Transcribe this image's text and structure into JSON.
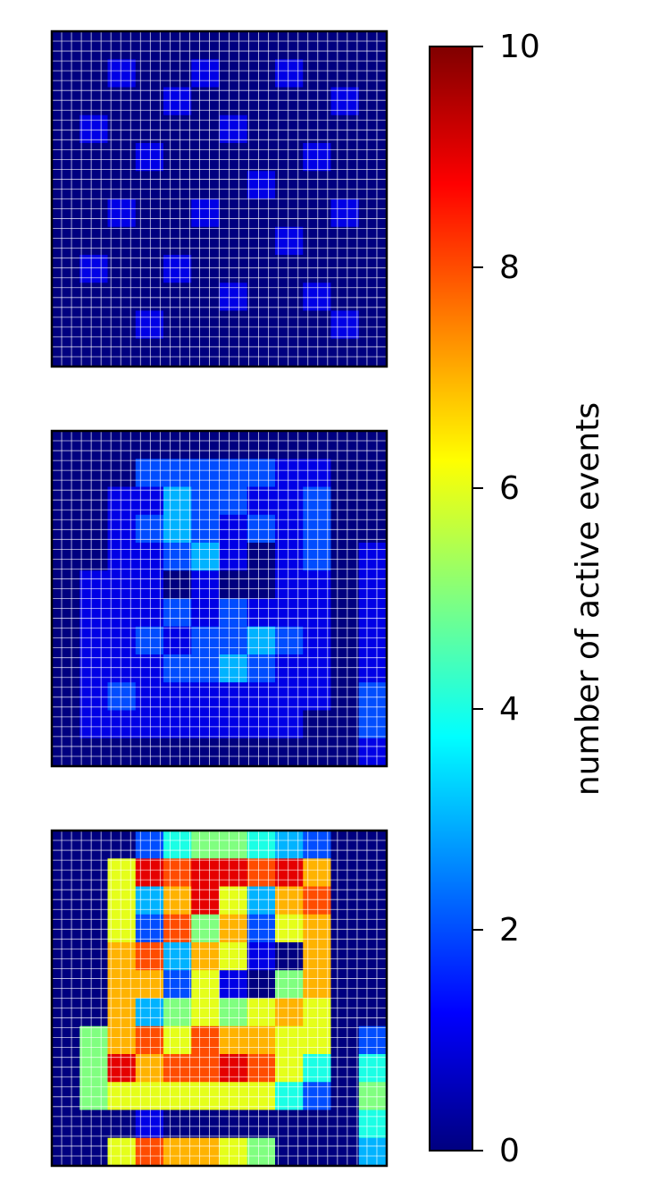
{
  "chart_data": {
    "type": "heatmap",
    "colormap": "jet",
    "clim": [
      0,
      10
    ],
    "cticks": [
      0,
      2,
      4,
      6,
      8,
      10
    ],
    "colorbar_label": "number of active events",
    "panels": [
      {
        "values": [
          [
            0,
            0,
            0,
            0,
            0,
            0,
            0,
            0,
            0,
            0,
            0,
            0
          ],
          [
            0,
            0,
            1,
            0,
            0,
            1,
            0,
            0,
            1,
            0,
            0,
            0
          ],
          [
            0,
            0,
            0,
            0,
            1,
            0,
            0,
            0,
            0,
            0,
            1,
            0
          ],
          [
            0,
            1,
            0,
            0,
            0,
            0,
            1,
            0,
            0,
            0,
            0,
            0
          ],
          [
            0,
            0,
            0,
            1,
            0,
            0,
            0,
            0,
            0,
            1,
            0,
            0
          ],
          [
            0,
            0,
            0,
            0,
            0,
            0,
            0,
            1,
            0,
            0,
            0,
            0
          ],
          [
            0,
            0,
            1,
            0,
            0,
            1,
            0,
            0,
            0,
            0,
            1,
            0
          ],
          [
            0,
            0,
            0,
            0,
            0,
            0,
            0,
            0,
            1,
            0,
            0,
            0
          ],
          [
            0,
            1,
            0,
            0,
            1,
            0,
            0,
            0,
            0,
            0,
            0,
            0
          ],
          [
            0,
            0,
            0,
            0,
            0,
            0,
            1,
            0,
            0,
            1,
            0,
            0
          ],
          [
            0,
            0,
            0,
            1,
            0,
            0,
            0,
            0,
            0,
            0,
            1,
            0
          ],
          [
            0,
            0,
            0,
            0,
            0,
            0,
            0,
            0,
            0,
            0,
            0,
            0
          ]
        ]
      },
      {
        "values": [
          [
            0,
            0,
            0,
            0,
            0,
            0,
            0,
            0,
            0,
            0,
            0,
            0
          ],
          [
            0,
            0,
            0,
            2,
            2,
            2,
            2,
            2,
            1,
            1,
            0,
            0
          ],
          [
            0,
            0,
            1,
            1,
            3,
            2,
            2,
            1,
            1,
            2,
            0,
            0
          ],
          [
            0,
            0,
            1,
            2,
            3,
            2,
            1,
            2,
            1,
            2,
            0,
            0
          ],
          [
            0,
            0,
            1,
            1,
            2,
            3,
            1,
            0,
            1,
            2,
            0,
            1
          ],
          [
            0,
            1,
            1,
            1,
            0,
            1,
            0,
            0,
            1,
            1,
            0,
            1
          ],
          [
            0,
            1,
            1,
            1,
            2,
            1,
            2,
            1,
            1,
            1,
            0,
            1
          ],
          [
            0,
            1,
            1,
            2,
            1,
            2,
            2,
            3,
            2,
            1,
            0,
            1
          ],
          [
            0,
            1,
            1,
            1,
            2,
            2,
            3,
            2,
            1,
            1,
            0,
            1
          ],
          [
            0,
            1,
            2,
            1,
            1,
            1,
            1,
            1,
            1,
            1,
            0,
            2
          ],
          [
            0,
            1,
            1,
            1,
            1,
            1,
            1,
            1,
            1,
            0,
            0,
            2
          ],
          [
            0,
            0,
            0,
            0,
            0,
            0,
            0,
            0,
            0,
            0,
            0,
            1
          ]
        ]
      },
      {
        "values": [
          [
            0,
            0,
            0,
            2,
            4,
            5,
            5,
            4,
            3,
            2,
            0,
            0
          ],
          [
            0,
            0,
            6,
            9,
            8,
            9,
            9,
            8,
            9,
            7,
            0,
            0
          ],
          [
            0,
            0,
            6,
            3,
            7,
            9,
            6,
            3,
            7,
            8,
            0,
            0
          ],
          [
            0,
            0,
            6,
            2,
            8,
            5,
            7,
            2,
            6,
            7,
            0,
            0
          ],
          [
            0,
            0,
            7,
            8,
            3,
            7,
            6,
            1,
            0,
            7,
            0,
            0
          ],
          [
            0,
            0,
            7,
            7,
            2,
            6,
            1,
            0,
            5,
            7,
            0,
            0
          ],
          [
            0,
            0,
            7,
            3,
            5,
            6,
            5,
            6,
            7,
            6,
            0,
            0
          ],
          [
            0,
            5,
            7,
            8,
            6,
            8,
            7,
            7,
            6,
            6,
            0,
            2
          ],
          [
            0,
            5,
            9,
            7,
            8,
            8,
            9,
            8,
            6,
            4,
            0,
            4
          ],
          [
            0,
            5,
            6,
            6,
            6,
            6,
            6,
            6,
            4,
            2,
            0,
            5
          ],
          [
            0,
            0,
            0,
            1,
            0,
            0,
            0,
            0,
            0,
            0,
            0,
            4
          ],
          [
            0,
            0,
            6,
            8,
            7,
            7,
            6,
            5,
            0,
            0,
            0,
            3
          ]
        ]
      }
    ]
  }
}
